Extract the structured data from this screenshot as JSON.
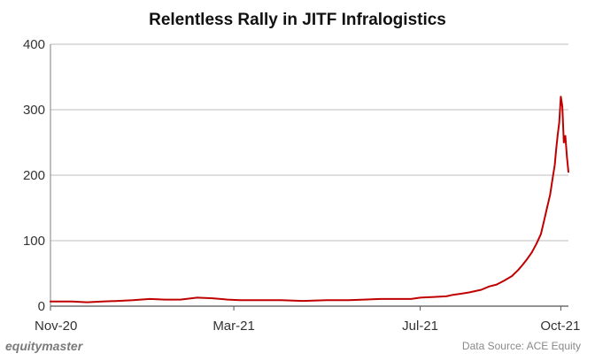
{
  "chart_data": {
    "type": "line",
    "title": "Relentless Rally in JITF Infralogistics",
    "xlabel": "",
    "ylabel": "",
    "ylim": [
      0,
      400
    ],
    "yticks": [
      0,
      100,
      200,
      300,
      400
    ],
    "grid": true,
    "legend": "none",
    "line_color": "#c00000",
    "xlim": [
      "2020-11-01",
      "2021-10-06"
    ],
    "xticks": [
      {
        "date": "2020-11-01",
        "label": "Nov-20"
      },
      {
        "date": "2021-03-01",
        "label": "Mar-21"
      },
      {
        "date": "2021-07-01",
        "label": "Jul-21"
      },
      {
        "date": "2021-10-01",
        "label": "Oct-21"
      }
    ],
    "series": [
      {
        "name": "",
        "points": [
          [
            "2020-11-01",
            7
          ],
          [
            "2020-11-15",
            7
          ],
          [
            "2020-11-25",
            6
          ],
          [
            "2020-12-05",
            7
          ],
          [
            "2020-12-15",
            8
          ],
          [
            "2020-12-25",
            9
          ],
          [
            "2021-01-05",
            11
          ],
          [
            "2021-01-15",
            10
          ],
          [
            "2021-01-25",
            10
          ],
          [
            "2021-02-05",
            13
          ],
          [
            "2021-02-15",
            12
          ],
          [
            "2021-02-25",
            10
          ],
          [
            "2021-03-05",
            9
          ],
          [
            "2021-03-20",
            9
          ],
          [
            "2021-04-01",
            9
          ],
          [
            "2021-04-15",
            8
          ],
          [
            "2021-05-01",
            9
          ],
          [
            "2021-05-15",
            9
          ],
          [
            "2021-05-25",
            10
          ],
          [
            "2021-06-05",
            11
          ],
          [
            "2021-06-15",
            11
          ],
          [
            "2021-06-25",
            11
          ],
          [
            "2021-07-01",
            13
          ],
          [
            "2021-07-10",
            14
          ],
          [
            "2021-07-18",
            15
          ],
          [
            "2021-07-22",
            17
          ],
          [
            "2021-07-28",
            19
          ],
          [
            "2021-08-02",
            21
          ],
          [
            "2021-08-06",
            23
          ],
          [
            "2021-08-10",
            25
          ],
          [
            "2021-08-15",
            30
          ],
          [
            "2021-08-20",
            33
          ],
          [
            "2021-08-25",
            39
          ],
          [
            "2021-08-30",
            46
          ],
          [
            "2021-09-03",
            55
          ],
          [
            "2021-09-06",
            63
          ],
          [
            "2021-09-09",
            72
          ],
          [
            "2021-09-12",
            82
          ],
          [
            "2021-09-15",
            95
          ],
          [
            "2021-09-18",
            110
          ],
          [
            "2021-09-20",
            130
          ],
          [
            "2021-09-22",
            150
          ],
          [
            "2021-09-24",
            170
          ],
          [
            "2021-09-26",
            200
          ],
          [
            "2021-09-27",
            215
          ],
          [
            "2021-09-28",
            240
          ],
          [
            "2021-09-29",
            262
          ],
          [
            "2021-09-30",
            280
          ],
          [
            "2021-10-01",
            320
          ],
          [
            "2021-10-02",
            305
          ],
          [
            "2021-10-03",
            250
          ],
          [
            "2021-10-04",
            260
          ],
          [
            "2021-10-05",
            228
          ],
          [
            "2021-10-06",
            205
          ]
        ]
      }
    ]
  },
  "footer": {
    "brand": "equitymaster",
    "source": "Data Source: ACE Equity"
  }
}
